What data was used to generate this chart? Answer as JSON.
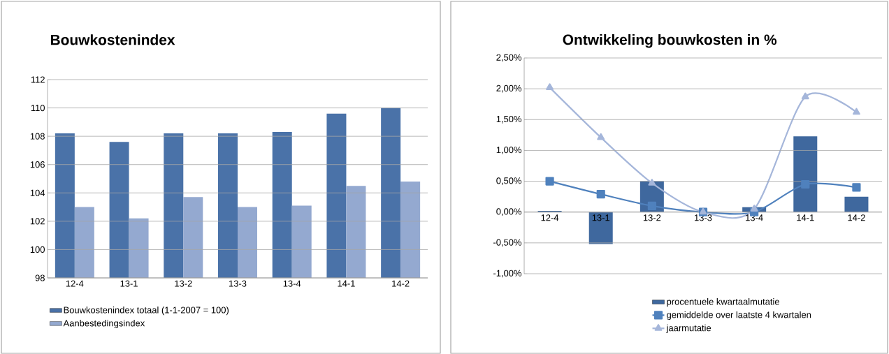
{
  "chart_data": [
    {
      "type": "bar",
      "title": "Bouwkostenindex",
      "categories": [
        "12-4",
        "13-1",
        "13-2",
        "13-3",
        "13-4",
        "14-1",
        "14-2"
      ],
      "series": [
        {
          "name": "Bouwkostenindex totaal  (1-1-2007 = 100)",
          "color": "#4a72a8",
          "values": [
            108.2,
            107.6,
            108.2,
            108.2,
            108.3,
            109.6,
            110.0
          ]
        },
        {
          "name": "Aanbestedingsindex",
          "color": "#94a9d0",
          "values": [
            103.0,
            102.2,
            103.7,
            103.0,
            103.1,
            104.5,
            104.8
          ]
        }
      ],
      "ylim": [
        98,
        112
      ],
      "yticks": [
        98,
        100,
        102,
        104,
        106,
        108,
        110,
        112
      ],
      "grid": "y",
      "legend": "bottom left"
    },
    {
      "type": "bar",
      "title": "Ontwikkeling bouwkosten in %",
      "categories": [
        "12-4",
        "13-1",
        "13-2",
        "13-3",
        "13-4",
        "14-1",
        "14-2"
      ],
      "series": [
        {
          "name": "procentuele kwartaalmutatie",
          "type": "bar",
          "color": "#3f689e",
          "values": [
            0.02,
            -0.52,
            0.5,
            0.0,
            0.08,
            1.23,
            0.25
          ]
        },
        {
          "name": "gemiddelde over laatste  4 kwartalen",
          "type": "line",
          "marker": "square",
          "color": "#4f81bd",
          "values": [
            0.5,
            0.29,
            0.1,
            0.0,
            0.0,
            0.45,
            0.4
          ]
        },
        {
          "name": "jaarmutatie",
          "type": "line",
          "marker": "triangle",
          "color": "#a5b6da",
          "values": [
            2.02,
            1.21,
            0.47,
            0.0,
            0.05,
            1.87,
            1.62
          ]
        }
      ],
      "ylim": [
        -1.0,
        2.5
      ],
      "yticks": [
        {
          "value": -1.0,
          "label": "-1,00%"
        },
        {
          "value": -0.5,
          "label": "-0,50%"
        },
        {
          "value": 0.0,
          "label": "0,00%"
        },
        {
          "value": 0.5,
          "label": "0,50%"
        },
        {
          "value": 1.0,
          "label": "1,00%"
        },
        {
          "value": 1.5,
          "label": "1,50%"
        },
        {
          "value": 2.0,
          "label": "2,00%"
        },
        {
          "value": 2.5,
          "label": "2,50%"
        }
      ],
      "grid": "y",
      "legend": "bottom"
    }
  ]
}
